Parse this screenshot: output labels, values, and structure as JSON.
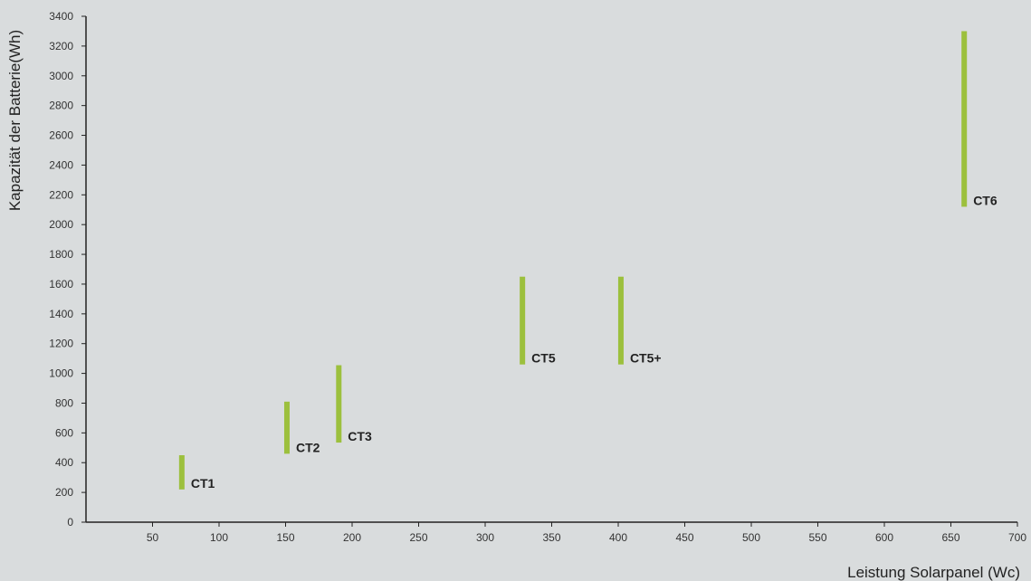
{
  "chart_data": {
    "type": "bar",
    "subtype": "range",
    "xlabel": "Leistung Solarpanel (Wc)",
    "ylabel": "Kapazität der Batterie(Wh)",
    "xlim": [
      0,
      700
    ],
    "ylim": [
      0,
      3400
    ],
    "xticks": [
      50,
      100,
      150,
      200,
      250,
      300,
      350,
      400,
      450,
      500,
      550,
      600,
      650,
      700
    ],
    "yticks": [
      0,
      200,
      400,
      600,
      800,
      1000,
      1200,
      1400,
      1600,
      1800,
      2000,
      2200,
      2400,
      2600,
      2800,
      3000,
      3200,
      3400
    ],
    "grid": false,
    "bar_color": "#9cc03d",
    "series": [
      {
        "label": "CT1",
        "x": 72,
        "ymin": 220,
        "ymax": 450
      },
      {
        "label": "CT2",
        "x": 151,
        "ymin": 460,
        "ymax": 810
      },
      {
        "label": "CT3",
        "x": 190,
        "ymin": 535,
        "ymax": 1055
      },
      {
        "label": "CT5",
        "x": 328,
        "ymin": 1060,
        "ymax": 1650
      },
      {
        "label": "CT5+",
        "x": 402,
        "ymin": 1060,
        "ymax": 1650
      },
      {
        "label": "CT6",
        "x": 660,
        "ymin": 2120,
        "ymax": 3300
      }
    ]
  }
}
